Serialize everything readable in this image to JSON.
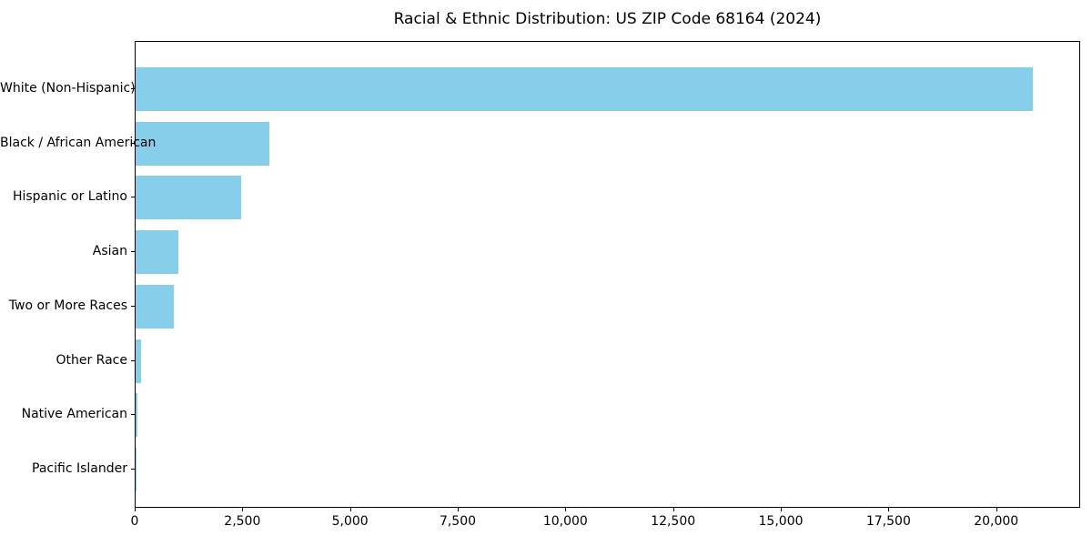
{
  "figure": {
    "background": "#ffffff",
    "text_color": "#000000"
  },
  "chart_data": {
    "type": "bar",
    "orientation": "horizontal",
    "title": "Racial & Ethnic Distribution: US ZIP Code 68164 (2024)",
    "categories": [
      "White (Non-Hispanic)",
      "Black / African American",
      "Hispanic or Latino",
      "Asian",
      "Two or More Races",
      "Other Race",
      "Native American",
      "Pacific Islander"
    ],
    "values": [
      20870,
      3120,
      2450,
      1000,
      890,
      125,
      40,
      15
    ],
    "xlabel": "",
    "ylabel": "",
    "xlim": [
      0,
      21950
    ],
    "x_ticks": [
      0,
      2500,
      5000,
      7500,
      10000,
      12500,
      15000,
      17500,
      20000
    ],
    "x_tick_labels": [
      "0",
      "2,500",
      "5,000",
      "7,500",
      "10,000",
      "12,500",
      "15,000",
      "17,500",
      "20,000"
    ],
    "bar_color": "#87CEEB",
    "grid": false,
    "legend": "none"
  }
}
